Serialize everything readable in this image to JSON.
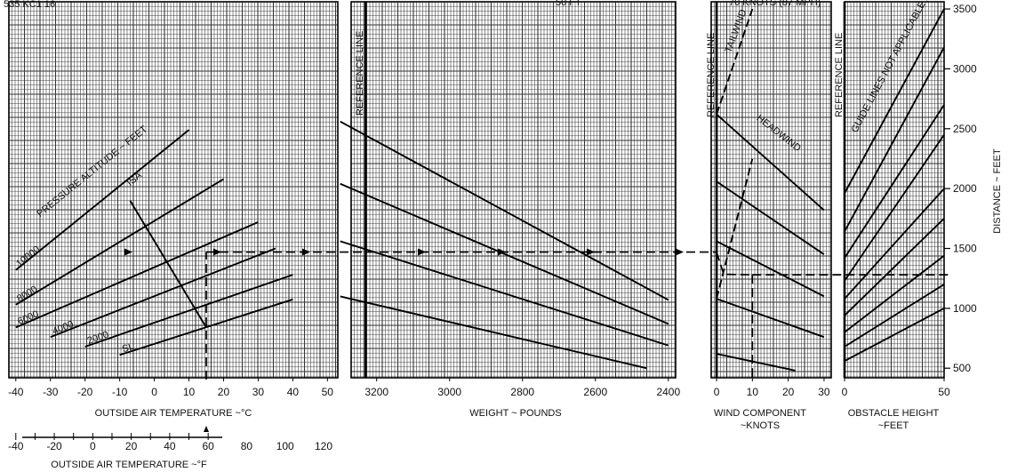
{
  "header": {
    "figure_id": "535 KC1 16",
    "top_left_partial": "50 FT",
    "top_right_partial": "70 KNOTS (87 MPH)"
  },
  "chart_data": {
    "type": "line",
    "panels": [
      {
        "name": "temperature",
        "xlabel": "OUTSIDE AIR TEMPERATURE ~°C",
        "x_ticks": [
          "-40",
          "-30",
          "-20",
          "-10",
          "0",
          "10",
          "20",
          "30",
          "40",
          "50"
        ],
        "xlim": [
          -42,
          53
        ],
        "title": "PRESSURE ALTITUDE ~ FEET",
        "isa_label": "ISA",
        "altitude_labels": [
          "10000",
          "8000",
          "6000",
          "4000",
          "2000",
          "SL"
        ],
        "series": [
          {
            "name": "SL",
            "x": [
              -10,
              40
            ],
            "y": [
              610,
              1075
            ]
          },
          {
            "name": "2000",
            "x": [
              -20,
              40
            ],
            "y": [
              680,
              1280
            ]
          },
          {
            "name": "4000",
            "x": [
              -30,
              35
            ],
            "y": [
              760,
              1500
            ]
          },
          {
            "name": "6000",
            "x": [
              -40,
              30
            ],
            "y": [
              840,
              1720
            ]
          },
          {
            "name": "8000",
            "x": [
              -40,
              20
            ],
            "y": [
              1030,
              2080
            ]
          },
          {
            "name": "10000",
            "x": [
              -40,
              10
            ],
            "y": [
              1320,
              2490
            ]
          }
        ],
        "isa_line": {
          "x": [
            -7,
            15
          ],
          "y": [
            1900,
            840
          ]
        },
        "fahrenheit_axis": {
          "label": "OUTSIDE AIR TEMPERATURE ~°F",
          "ticks": [
            "-40",
            "-20",
            "0",
            "20",
            "40",
            "60",
            "80",
            "100",
            "120"
          ]
        }
      },
      {
        "name": "weight",
        "xlabel": "WEIGHT ~ POUNDS",
        "x_ticks": [
          "3200",
          "3000",
          "2800",
          "2600",
          "2400"
        ],
        "xlim": [
          3270,
          2380
        ],
        "reference_line_label": "REFERENCE LINE",
        "series": [
          {
            "x": [
              3300,
              2400
            ],
            "y": [
              2560,
              1070
            ]
          },
          {
            "x": [
              3300,
              2400
            ],
            "y": [
              2040,
              870
            ]
          },
          {
            "x": [
              3300,
              2400
            ],
            "y": [
              1560,
              690
            ]
          },
          {
            "x": [
              3300,
              2460
            ],
            "y": [
              1100,
              500
            ]
          }
        ]
      },
      {
        "name": "wind",
        "xlabel": "WIND COMPONENT ~ KNOTS",
        "x_ticks": [
          "0",
          "10",
          "20",
          "30"
        ],
        "xlim": [
          -1.5,
          32
        ],
        "reference_line_label": "REFERENCE LINE",
        "headwind_label": "HEADWIND",
        "tailwind_label": "TAILWIND",
        "headwind_lines": [
          {
            "x": [
              0,
              30
            ],
            "y": [
              2620,
              1820
            ]
          },
          {
            "x": [
              0,
              30
            ],
            "y": [
              2060,
              1450
            ]
          },
          {
            "x": [
              0,
              30
            ],
            "y": [
              1560,
              1100
            ]
          },
          {
            "x": [
              0,
              30
            ],
            "y": [
              1080,
              760
            ]
          },
          {
            "x": [
              0,
              22
            ],
            "y": [
              620,
              480
            ]
          }
        ],
        "tailwind_lines": [
          {
            "x": [
              0,
              10
            ],
            "y": [
              2620,
              3500
            ]
          },
          {
            "x": [
              0,
              10
            ],
            "y": [
              1080,
              2250
            ]
          }
        ]
      },
      {
        "name": "obstacle",
        "xlabel": "OBSTACLE HEIGHT ~ FEET",
        "x_ticks": [
          "0",
          "50"
        ],
        "xlim": [
          0,
          50
        ],
        "reference_line_label": "REFERENCE LINE",
        "note": "GUIDE LINES NOT APPLICABLE FOR INTERMEDIATE OBSTACLE HEIGHTS",
        "series": [
          {
            "x": [
              0,
              50
            ],
            "y": [
              1960,
              3500
            ]
          },
          {
            "x": [
              0,
              50
            ],
            "y": [
              1640,
              3180
            ]
          },
          {
            "x": [
              0,
              50
            ],
            "y": [
              1420,
              2700
            ]
          },
          {
            "x": [
              0,
              50
            ],
            "y": [
              1230,
              2450
            ]
          },
          {
            "x": [
              0,
              50
            ],
            "y": [
              1080,
              2000
            ]
          },
          {
            "x": [
              0,
              50
            ],
            "y": [
              940,
              1750
            ]
          },
          {
            "x": [
              0,
              50
            ],
            "y": [
              800,
              1440
            ]
          },
          {
            "x": [
              0,
              50
            ],
            "y": [
              680,
              1200
            ]
          },
          {
            "x": [
              0,
              50
            ],
            "y": [
              560,
              1000
            ]
          }
        ]
      }
    ],
    "y_axis": {
      "label": "DISTANCE ~ FEET",
      "ticks": [
        "500",
        "1000",
        "1500",
        "2000",
        "2500",
        "3000",
        "3500"
      ],
      "ylim": [
        420,
        3560
      ]
    },
    "example_path": {
      "temperature_c": 15,
      "distance_start": 1470,
      "distance_end": 1280,
      "wind_knots": 10,
      "obstacle_ft": 50
    }
  }
}
